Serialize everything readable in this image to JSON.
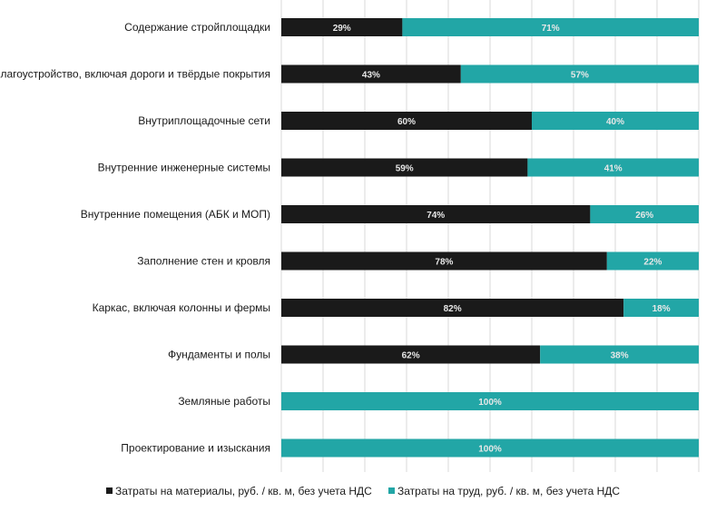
{
  "chart_data": {
    "type": "bar",
    "orientation": "horizontal",
    "stacked": "percent",
    "title": "",
    "xlabel": "",
    "ylabel": "",
    "xlim": [
      0,
      100
    ],
    "grid": true,
    "legend_position": "bottom",
    "categories": [
      "Содержание стройплощадки",
      "Благоустройство, включая дороги и твёрдые покрытия",
      "Внутриплощадочные сети",
      "Внутренние инженерные системы",
      "Внутренние помещения (АБК и МОП)",
      "Заполнение стен и кровля",
      "Каркас, включая колонны и фермы",
      "Фундаменты и полы",
      "Земляные работы",
      "Проектирование и изыскания"
    ],
    "series": [
      {
        "name": "Затраты на материалы, руб. / кв. м, без учета НДС",
        "color": "#1a1a1a",
        "values": [
          29,
          43,
          60,
          59,
          74,
          78,
          82,
          62,
          0,
          0
        ]
      },
      {
        "name": "Затраты на труд, руб. / кв. м, без учета НДС",
        "color": "#22a6a6",
        "values": [
          71,
          57,
          40,
          41,
          26,
          22,
          18,
          38,
          100,
          100
        ]
      }
    ]
  }
}
